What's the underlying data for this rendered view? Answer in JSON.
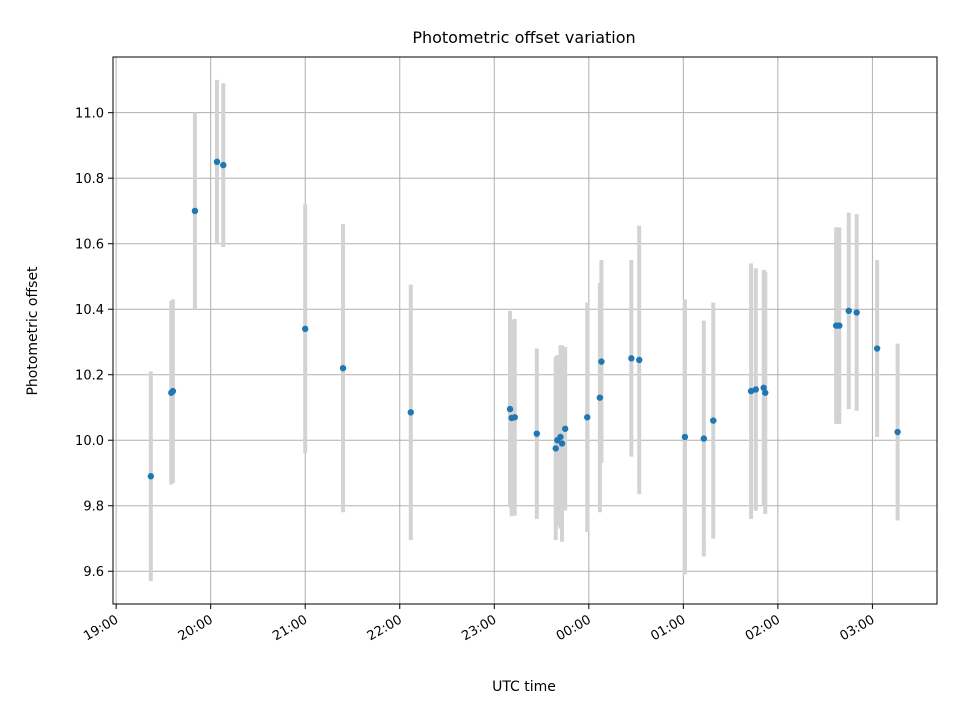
{
  "chart_data": {
    "type": "scatter",
    "title": "Photometric offset variation",
    "xlabel": "UTC time",
    "ylabel": "Photometric offset",
    "x_axis": "time",
    "x_ticks": [
      "19:00",
      "20:00",
      "21:00",
      "22:00",
      "23:00",
      "00:00",
      "01:00",
      "02:00",
      "03:00"
    ],
    "xlim": [
      "18:58",
      "03:41"
    ],
    "ylim": [
      9.5,
      11.17
    ],
    "y_ticks": [
      9.6,
      9.8,
      10.0,
      10.2,
      10.4,
      10.6,
      10.8,
      11.0
    ],
    "grid": true,
    "error_bars": "symmetric",
    "colors": {
      "marker": "#1f77b4",
      "error_bar": "#d3d3d3",
      "grid": "#b0b0b0"
    },
    "points": [
      {
        "x": "19:22",
        "y": 9.89,
        "err": 0.32
      },
      {
        "x": "19:35",
        "y": 10.145,
        "err": 0.28
      },
      {
        "x": "19:36",
        "y": 10.15,
        "err": 0.28
      },
      {
        "x": "19:50",
        "y": 10.7,
        "err": 0.3
      },
      {
        "x": "20:04",
        "y": 10.85,
        "err": 0.25
      },
      {
        "x": "20:08",
        "y": 10.84,
        "err": 0.25
      },
      {
        "x": "21:00",
        "y": 10.34,
        "err": 0.38
      },
      {
        "x": "21:24",
        "y": 10.22,
        "err": 0.44
      },
      {
        "x": "22:07",
        "y": 10.085,
        "err": 0.39
      },
      {
        "x": "23:10",
        "y": 10.095,
        "err": 0.3
      },
      {
        "x": "23:11",
        "y": 10.068,
        "err": 0.3
      },
      {
        "x": "23:13",
        "y": 10.07,
        "err": 0.3
      },
      {
        "x": "23:27",
        "y": 10.02,
        "err": 0.26
      },
      {
        "x": "23:39",
        "y": 9.975,
        "err": 0.28
      },
      {
        "x": "23:40",
        "y": 10.0,
        "err": 0.26
      },
      {
        "x": "23:42",
        "y": 10.01,
        "err": 0.28
      },
      {
        "x": "23:43",
        "y": 9.99,
        "err": 0.3
      },
      {
        "x": "23:45",
        "y": 10.035,
        "err": 0.25
      },
      {
        "x": "23:59",
        "y": 10.07,
        "err": 0.35
      },
      {
        "x": "00:07",
        "y": 10.13,
        "err": 0.35
      },
      {
        "x": "00:08",
        "y": 10.24,
        "err": 0.31
      },
      {
        "x": "00:27",
        "y": 10.25,
        "err": 0.3
      },
      {
        "x": "00:32",
        "y": 10.245,
        "err": 0.41
      },
      {
        "x": "01:01",
        "y": 10.01,
        "err": 0.42
      },
      {
        "x": "01:13",
        "y": 10.005,
        "err": 0.36
      },
      {
        "x": "01:19",
        "y": 10.06,
        "err": 0.36
      },
      {
        "x": "01:43",
        "y": 10.15,
        "err": 0.39
      },
      {
        "x": "01:46",
        "y": 10.155,
        "err": 0.37
      },
      {
        "x": "01:51",
        "y": 10.16,
        "err": 0.36
      },
      {
        "x": "01:52",
        "y": 10.145,
        "err": 0.37
      },
      {
        "x": "02:37",
        "y": 10.35,
        "err": 0.3
      },
      {
        "x": "02:39",
        "y": 10.35,
        "err": 0.3
      },
      {
        "x": "02:45",
        "y": 10.395,
        "err": 0.3
      },
      {
        "x": "02:50",
        "y": 10.39,
        "err": 0.3
      },
      {
        "x": "03:03",
        "y": 10.28,
        "err": 0.27
      },
      {
        "x": "03:16",
        "y": 10.025,
        "err": 0.27
      }
    ]
  }
}
